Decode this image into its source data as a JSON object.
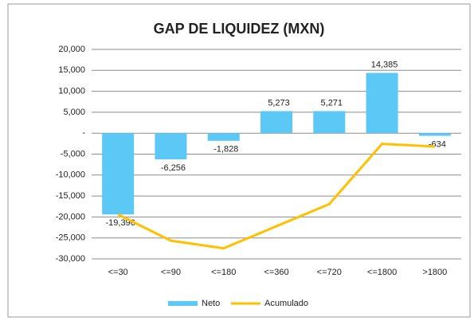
{
  "chart_data": {
    "type": "bar_line",
    "title": "GAP DE LIQUIDEZ (MXN)",
    "categories": [
      "<=30",
      "<=90",
      "<=180",
      "<=360",
      "<=720",
      "<=1800",
      ">1800"
    ],
    "series": [
      {
        "name": "Neto",
        "color": "#5bc8f5",
        "type": "bar",
        "values": [
          -19396,
          -6256,
          -1828,
          5273,
          5271,
          14385,
          -634
        ],
        "value_labels": [
          "-19,396",
          "-6,256",
          "-1,828",
          "5,273",
          "5,271",
          "14,385",
          "-634"
        ]
      },
      {
        "name": "Acumulado",
        "color": "#ffc000",
        "type": "line",
        "values": [
          -19396,
          -25652,
          -27480,
          -22207,
          -16936,
          -2551,
          -3185
        ]
      }
    ],
    "ylim": [
      -30000,
      20000
    ],
    "yticks": [
      {
        "value": 20000,
        "label": "20,000"
      },
      {
        "value": 15000,
        "label": "15,000"
      },
      {
        "value": 10000,
        "label": "10,000"
      },
      {
        "value": 5000,
        "label": "5,000"
      },
      {
        "value": 0,
        "label": "-"
      },
      {
        "value": -5000,
        "label": "-5,000"
      },
      {
        "value": -10000,
        "label": "-10,000"
      },
      {
        "value": -15000,
        "label": "-15,000"
      },
      {
        "value": -20000,
        "label": "-20,000"
      },
      {
        "value": -25000,
        "label": "-25,000"
      },
      {
        "value": -30000,
        "label": "-30,000"
      }
    ],
    "grid": true,
    "legend": "bottom"
  }
}
